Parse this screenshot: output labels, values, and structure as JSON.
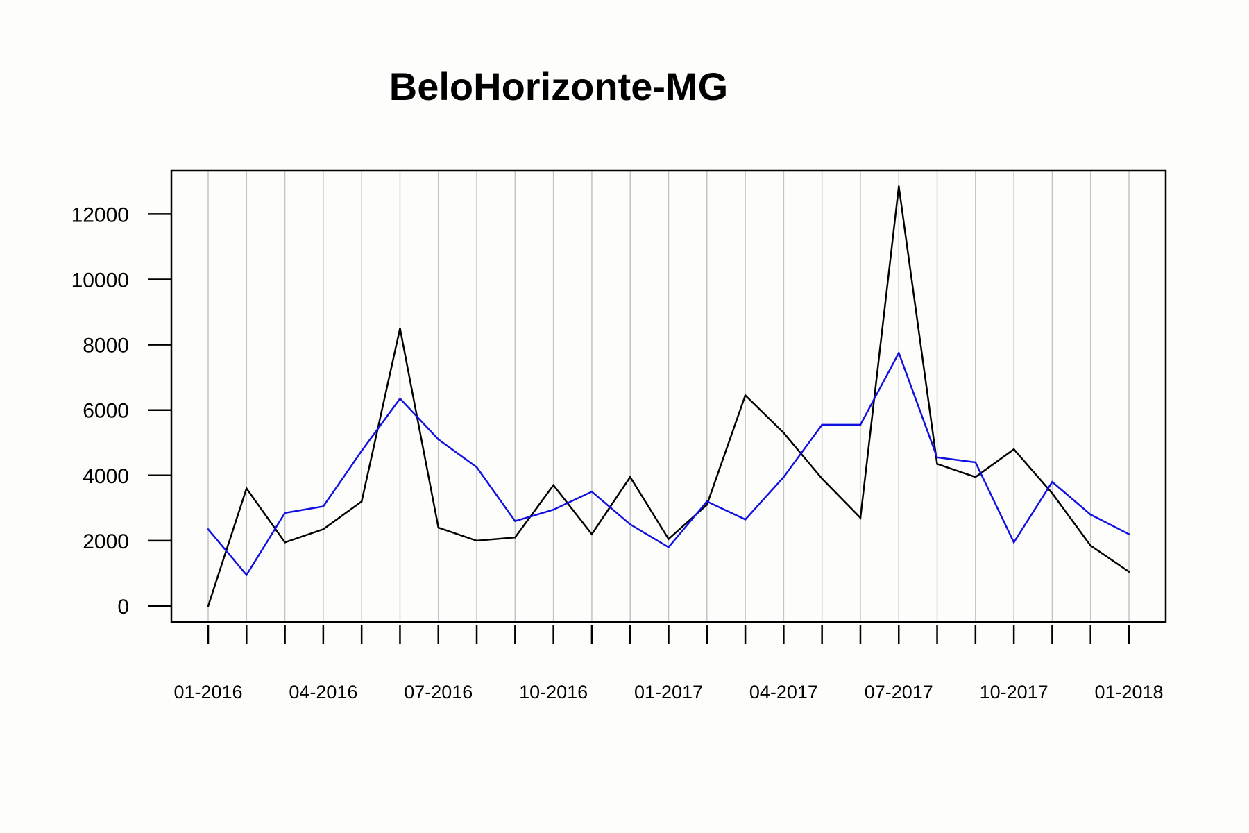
{
  "chart_data": {
    "type": "line",
    "title": "BeloHorizonte-MG",
    "xlabel": "",
    "ylabel": "",
    "x": [
      "01-2016",
      "02-2016",
      "03-2016",
      "04-2016",
      "05-2016",
      "06-2016",
      "07-2016",
      "08-2016",
      "09-2016",
      "10-2016",
      "11-2016",
      "12-2016",
      "01-2017",
      "02-2017",
      "03-2017",
      "04-2017",
      "05-2017",
      "06-2017",
      "07-2017",
      "08-2017",
      "09-2017",
      "10-2017",
      "11-2017",
      "12-2017",
      "01-2018"
    ],
    "x_tick_labels": [
      {
        "index": 0,
        "label": "01-2016"
      },
      {
        "index": 3,
        "label": "04-2016"
      },
      {
        "index": 6,
        "label": "07-2016"
      },
      {
        "index": 9,
        "label": "10-2016"
      },
      {
        "index": 12,
        "label": "01-2017"
      },
      {
        "index": 15,
        "label": "04-2017"
      },
      {
        "index": 18,
        "label": "07-2017"
      },
      {
        "index": 21,
        "label": "10-2017"
      },
      {
        "index": 24,
        "label": "01-2018"
      }
    ],
    "y_ticks": [
      "0",
      "2000",
      "4000",
      "6000",
      "8000",
      "10000",
      "12000"
    ],
    "ylim": [
      -500,
      13300
    ],
    "grid": "vertical",
    "series": [
      {
        "color": "#000000",
        "values": [
          0,
          3600,
          1950,
          2350,
          3200,
          8500,
          2400,
          2000,
          2100,
          3700,
          2200,
          3950,
          2050,
          3100,
          6450,
          5300,
          3900,
          2700,
          12850,
          4350,
          3950,
          4800,
          3450,
          1850,
          1050
        ]
      },
      {
        "color": "#1010e0",
        "values": [
          2350,
          950,
          2850,
          3050,
          4750,
          6350,
          5100,
          4250,
          2600,
          2950,
          3500,
          2500,
          1800,
          3200,
          2650,
          3950,
          5550,
          5550,
          7750,
          4550,
          4400,
          1950,
          3800,
          2800,
          2200
        ]
      }
    ]
  }
}
